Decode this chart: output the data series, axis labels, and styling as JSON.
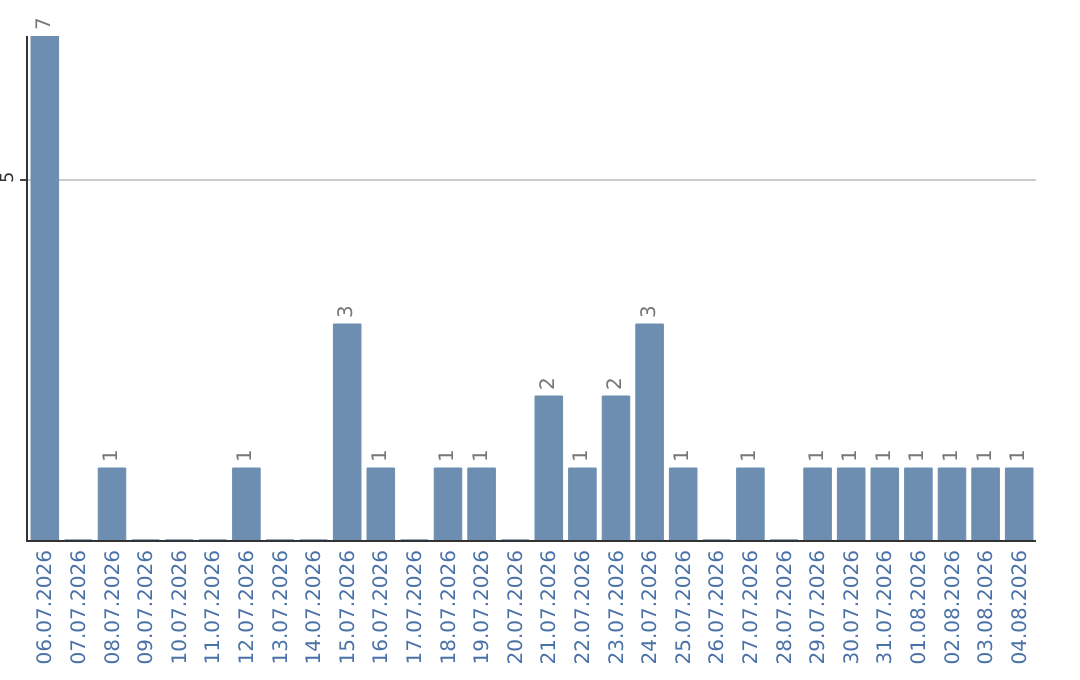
{
  "chart_data": {
    "type": "bar",
    "categories": [
      "06.07.2026",
      "07.07.2026",
      "08.07.2026",
      "09.07.2026",
      "10.07.2026",
      "11.07.2026",
      "12.07.2026",
      "13.07.2026",
      "14.07.2026",
      "15.07.2026",
      "16.07.2026",
      "17.07.2026",
      "18.07.2026",
      "19.07.2026",
      "20.07.2026",
      "21.07.2026",
      "22.07.2026",
      "23.07.2026",
      "24.07.2026",
      "25.07.2026",
      "26.07.2026",
      "27.07.2026",
      "28.07.2026",
      "29.07.2026",
      "30.07.2026",
      "31.07.2026",
      "01.08.2026",
      "02.08.2026",
      "03.08.2026",
      "04.08.2026"
    ],
    "values": [
      7,
      0,
      1,
      0,
      0,
      0,
      1,
      0,
      0,
      3,
      1,
      0,
      1,
      1,
      0,
      2,
      1,
      2,
      3,
      1,
      0,
      1,
      0,
      1,
      1,
      1,
      1,
      1,
      1,
      1
    ],
    "value_labels": [
      "7",
      null,
      "1",
      null,
      null,
      null,
      "1",
      null,
      null,
      "3",
      "1",
      null,
      "1",
      "1",
      null,
      "2",
      "1",
      "2",
      "3",
      "1",
      null,
      "1",
      null,
      "1",
      "1",
      "1",
      "1",
      "1",
      "1",
      "1"
    ],
    "color": "#6d8eb0",
    "ylim": [
      0,
      7
    ],
    "yticks": [
      5
    ],
    "grid": "y",
    "legend": false
  }
}
